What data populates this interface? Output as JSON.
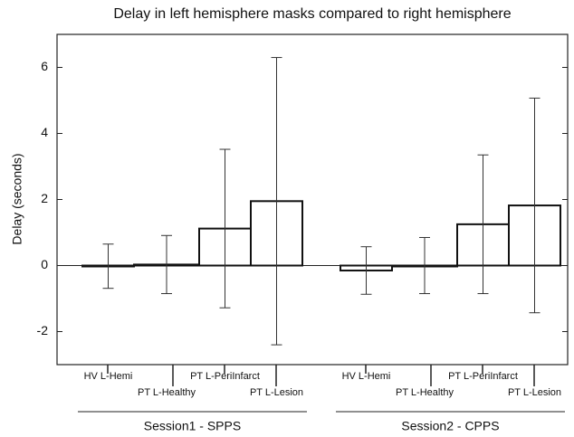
{
  "chart_data": {
    "type": "bar",
    "title": "Delay in left hemisphere masks compared to right hemisphere",
    "y_label": "Delay (seconds)",
    "ylim": [
      -3,
      7
    ],
    "yticks": [
      -2,
      0,
      2,
      4,
      6
    ],
    "color": "#ffffff",
    "groups": [
      {
        "name": "Session1 - SPPS",
        "categories": [
          "HV L-Hemi",
          "PT L-Healthy",
          "PT L-PeriInfarct",
          "PT L-Lesion"
        ],
        "values": [
          -0.02,
          0.03,
          1.12,
          1.95
        ],
        "errors": [
          0.67,
          0.88,
          2.4,
          4.35
        ]
      },
      {
        "name": "Session2 - CPPS",
        "categories": [
          "HV L-Hemi",
          "PT L-Healthy",
          "PT L-PeriInfarct",
          "PT L-Lesion"
        ],
        "values": [
          -0.15,
          0.0,
          1.25,
          1.82
        ],
        "errors": [
          0.72,
          0.85,
          2.1,
          3.25
        ]
      }
    ]
  }
}
